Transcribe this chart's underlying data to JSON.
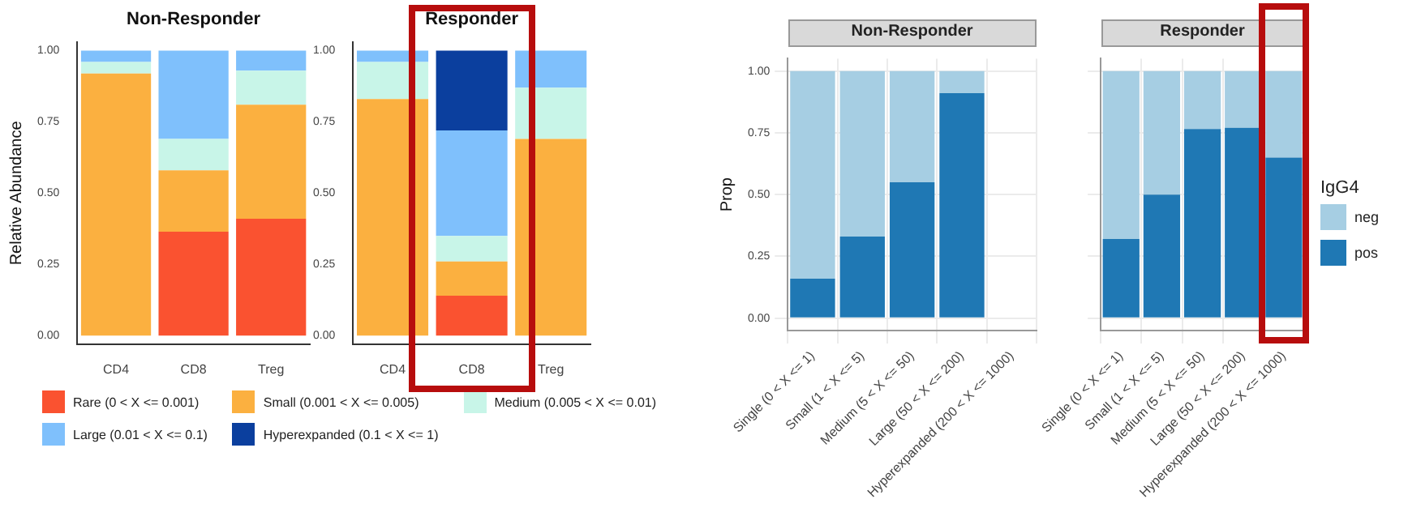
{
  "chart_data": [
    {
      "type": "bar",
      "title": "Non-Responder",
      "ylabel": "Relative Abundance",
      "categories": [
        "CD4",
        "CD8",
        "Treg"
      ],
      "stacked": true,
      "legend": "bottom",
      "grid": false,
      "ylim": [
        -0.03,
        1.03
      ],
      "yticks": [
        {
          "value": 0,
          "label": "0.00"
        },
        {
          "value": 0.25,
          "label": "0.25"
        },
        {
          "value": 0.5,
          "label": "0.50"
        },
        {
          "value": 0.75,
          "label": "0.75"
        },
        {
          "value": 1,
          "label": "1.00"
        }
      ],
      "series": [
        {
          "name": "Rare (0 < X <= 0.001)",
          "color": "#fa5230",
          "values": [
            0,
            0.365,
            0.41
          ]
        },
        {
          "name": "Small (0.001 < X <= 0.005)",
          "color": "#fbb040",
          "values": [
            0.92,
            0.215,
            0.4
          ]
        },
        {
          "name": "Medium (0.005 < X <= 0.01)",
          "color": "#c8f5e8",
          "values": [
            0.04,
            0.11,
            0.12
          ]
        },
        {
          "name": "Large (0.01 < X <= 0.1)",
          "color": "#7fc0fc",
          "values": [
            0.04,
            0.31,
            0.07
          ]
        },
        {
          "name": "Hyperexpanded (0.1 < X <= 1)",
          "color": "#0b3f9e",
          "values": [
            0,
            0,
            0
          ]
        }
      ]
    },
    {
      "type": "bar",
      "title": "Responder",
      "categories": [
        "CD4",
        "CD8",
        "Treg"
      ],
      "stacked": true,
      "grid": false,
      "ylim": [
        -0.03,
        1.03
      ],
      "yticks": [
        {
          "value": 0,
          "label": "0.00"
        },
        {
          "value": 0.25,
          "label": "0.25"
        },
        {
          "value": 0.5,
          "label": "0.50"
        },
        {
          "value": 0.75,
          "label": "0.75"
        },
        {
          "value": 1,
          "label": "1.00"
        }
      ],
      "series": [
        {
          "color": "#fa5230",
          "values": [
            0,
            0.14,
            0
          ]
        },
        {
          "color": "#fbb040",
          "values": [
            0.83,
            0.12,
            0.69
          ]
        },
        {
          "color": "#c8f5e8",
          "values": [
            0.13,
            0.09,
            0.18
          ]
        },
        {
          "color": "#7fc0fc",
          "values": [
            0.04,
            0.37,
            0.13
          ]
        },
        {
          "color": "#0b3f9e",
          "values": [
            0,
            0.28,
            0
          ]
        }
      ]
    },
    {
      "type": "bar",
      "title": "Non-Responder",
      "ylabel": "Prop",
      "categories": [
        "Single (0 < X <= 1)",
        "Small (1 < X <= 5)",
        "Medium (5 < X <= 50)",
        "Large (50 < X <= 200)",
        "Hyperexpanded (200 < X <= 1000)"
      ],
      "stacked": true,
      "grid": true,
      "ylim": [
        -0.05,
        1.05
      ],
      "yticks": [
        {
          "value": 0,
          "label": "0.00"
        },
        {
          "value": 0.25,
          "label": "0.25"
        },
        {
          "value": 0.5,
          "label": "0.50"
        },
        {
          "value": 0.75,
          "label": "0.75"
        },
        {
          "value": 1,
          "label": "1.00"
        }
      ],
      "series": [
        {
          "color": "#1f78b4",
          "values": [
            0.16,
            0.33,
            0.55,
            0.91,
            null
          ]
        },
        {
          "color": "#a6cee3",
          "values": [
            0.84,
            0.67,
            0.45,
            0.09,
            null
          ]
        }
      ]
    },
    {
      "type": "bar",
      "title": "Responder",
      "categories": [
        "Single (0 < X <= 1)",
        "Small (1 < X <= 5)",
        "Medium (5 < X <= 50)",
        "Large (50 < X <= 200)",
        "Hyperexpanded (200 < X <= 1000)"
      ],
      "stacked": true,
      "grid": true,
      "tick_labels": "x",
      "legend": "right",
      "legend_title": "IgG4",
      "ylim": [
        -0.05,
        1.05
      ],
      "yticks": [
        0,
        0.25,
        0.5,
        0.75,
        1
      ],
      "series": [
        {
          "name": "pos",
          "color": "#1f78b4",
          "values": [
            0.32,
            0.5,
            0.765,
            0.77,
            0.65
          ]
        },
        {
          "name": "neg",
          "color": "#a6cee3",
          "values": [
            0.68,
            0.5,
            0.235,
            0.23,
            0.35
          ]
        }
      ]
    }
  ]
}
